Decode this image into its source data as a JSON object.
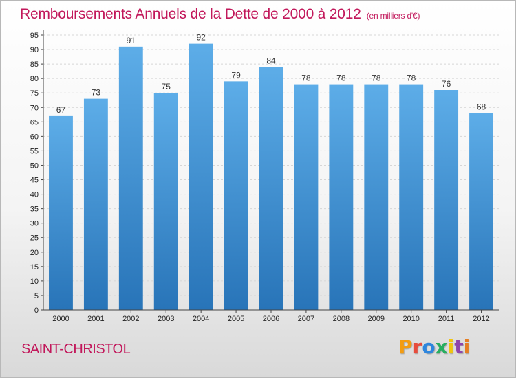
{
  "header": {
    "title": "Remboursements Annuels de la Dette de 2000 à 2012",
    "unit": "(en milliers d'€)"
  },
  "footer": {
    "commune": "SAINT-CHRISTOL",
    "logo": "Proxiti",
    "logo_colors": [
      "#f39c12",
      "#e74c3c",
      "#2e86de",
      "#27ae60",
      "#f1c40f",
      "#8e44ad",
      "#e67e22"
    ]
  },
  "chart_data": {
    "type": "bar",
    "categories": [
      "2000",
      "2001",
      "2002",
      "2003",
      "2004",
      "2005",
      "2006",
      "2007",
      "2008",
      "2009",
      "2010",
      "2011",
      "2012"
    ],
    "values": [
      67,
      73,
      91,
      75,
      92,
      79,
      84,
      78,
      78,
      78,
      78,
      76,
      68
    ],
    "ylim": [
      0,
      95
    ],
    "ytick_step": 5,
    "grid": true,
    "bar_color_top": "#5dade8",
    "bar_color_bottom": "#2874b8"
  }
}
